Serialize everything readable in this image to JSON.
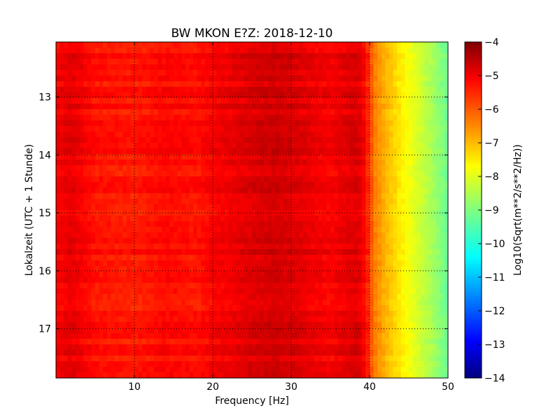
{
  "chart_data": {
    "type": "heatmap",
    "title": "BW MKON E?Z: 2018-12-10",
    "xlabel": "Frequency [Hz]",
    "ylabel": "Lokalzeit (UTC + 1 Stunde)",
    "xlim": [
      0,
      50
    ],
    "ylim": [
      12.05,
      17.85
    ],
    "y_inverted": true,
    "x_ticks": [
      10,
      20,
      30,
      40,
      50
    ],
    "y_ticks": [
      13,
      14,
      15,
      16,
      17
    ],
    "grid": true,
    "colormap": "jet",
    "colorbar": {
      "label": "Log10(Sqrt(m**2/s**2/Hz))",
      "range": [
        -14,
        -4
      ],
      "ticks": [
        -4,
        -5,
        -6,
        -7,
        -8,
        -9,
        -10,
        -11,
        -12,
        -13,
        -14
      ]
    },
    "spectrum_profile": {
      "frequency_hz": [
        0,
        2,
        5,
        10,
        14,
        18,
        20,
        22,
        25,
        28,
        30,
        33,
        35,
        37,
        38.5,
        39.5,
        40.5,
        42,
        44,
        46,
        48,
        50
      ],
      "log10_amplitude": [
        -5.2,
        -5.0,
        -5.4,
        -5.5,
        -5.3,
        -5.4,
        -5.2,
        -5.1,
        -4.9,
        -4.8,
        -4.9,
        -5.1,
        -5.2,
        -5.0,
        -4.9,
        -5.3,
        -6.4,
        -7.0,
        -7.6,
        -8.1,
        -8.6,
        -9.2
      ]
    }
  }
}
